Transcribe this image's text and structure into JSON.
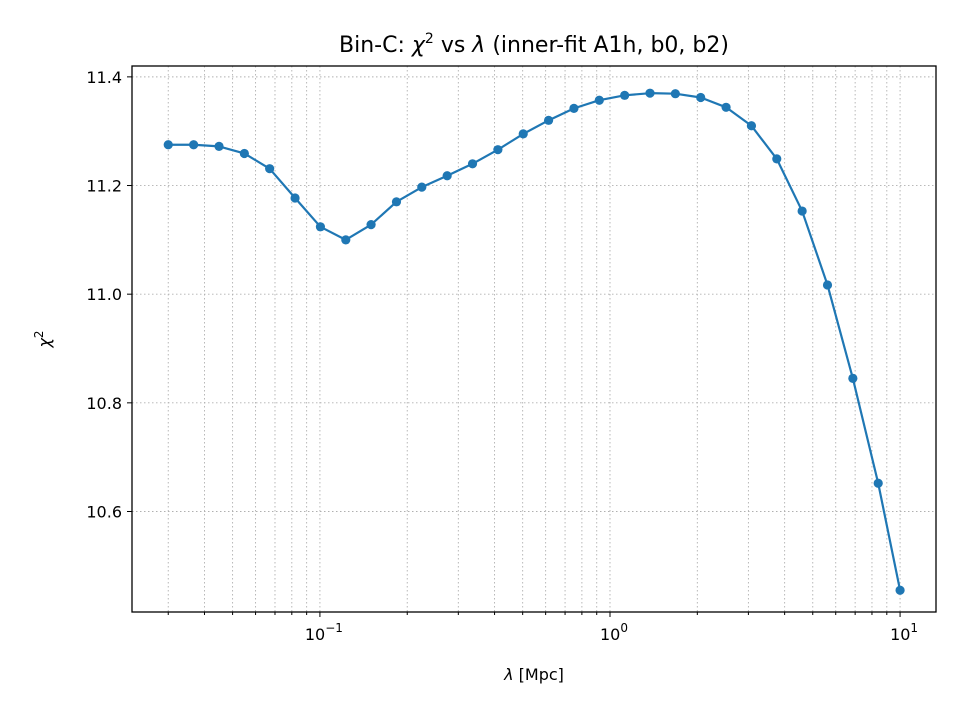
{
  "chart_data": {
    "type": "line",
    "title": {
      "prefix": "Bin-C: ",
      "chi": "χ",
      "sup": "2",
      "mid": " vs ",
      "lambda": "λ",
      "suffix": " (inner-fit A1h, b0, b2)"
    },
    "xlabel": {
      "symbol": "λ",
      "text": " [Mpc]"
    },
    "ylabel": {
      "symbol": "χ",
      "sup": "2"
    },
    "xscale": "log",
    "xlim": [
      0.0225,
      13.3
    ],
    "ylim": [
      10.415,
      11.42
    ],
    "grid": true,
    "grid_style": "dotted",
    "color": "#1f77b4",
    "marker": "circle",
    "x_ticks": [
      {
        "value": 0.1,
        "base": "10",
        "exp": "−1"
      },
      {
        "value": 1,
        "base": "10",
        "exp": "0"
      },
      {
        "value": 10,
        "base": "10",
        "exp": "1"
      }
    ],
    "y_ticks": [
      {
        "value": 10.6,
        "label": "10.6"
      },
      {
        "value": 10.8,
        "label": "10.8"
      },
      {
        "value": 11.0,
        "label": "11.0"
      },
      {
        "value": 11.2,
        "label": "11.2"
      },
      {
        "value": 11.4,
        "label": "11.4"
      }
    ],
    "x": [
      0.03,
      0.0367,
      0.0449,
      0.0549,
      0.0671,
      0.0821,
      0.1004,
      0.1228,
      0.1501,
      0.1836,
      0.2245,
      0.2746,
      0.3358,
      0.4107,
      0.5022,
      0.6142,
      0.7511,
      0.9186,
      1.1234,
      1.3738,
      1.6801,
      2.0547,
      2.5128,
      3.073,
      3.7582,
      4.5961,
      5.6208,
      6.8739,
      8.4064,
      10.0
    ],
    "values": [
      11.275,
      11.275,
      11.272,
      11.259,
      11.231,
      11.177,
      11.124,
      11.1,
      11.128,
      11.17,
      11.197,
      11.218,
      11.24,
      11.266,
      11.295,
      11.32,
      11.342,
      11.357,
      11.366,
      11.37,
      11.369,
      11.362,
      11.344,
      11.31,
      11.249,
      11.153,
      11.017,
      10.845,
      10.652,
      10.455
    ]
  }
}
